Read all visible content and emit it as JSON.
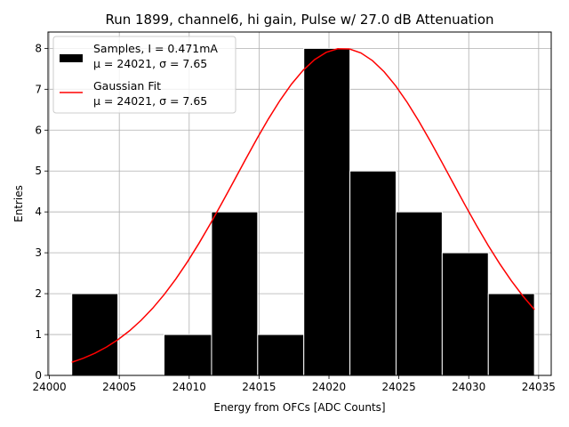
{
  "chart_data": {
    "type": "bar",
    "title": "Run 1899, channel6, hi gain, Pulse w/ 27.0 dB Attenuation",
    "xlabel": "Energy from OFCs [ADC Counts]",
    "ylabel": "Entries",
    "xlim": [
      23999.9,
      24035.9
    ],
    "ylim": [
      0,
      8.4
    ],
    "xticks": [
      "24000",
      "24005",
      "24010",
      "24015",
      "24020",
      "24025",
      "24030",
      "24035"
    ],
    "yticks": [
      "0",
      "1",
      "2",
      "3",
      "4",
      "5",
      "6",
      "7",
      "8"
    ],
    "grid": true,
    "legend_placement": "top-left",
    "histogram": {
      "bin_edges": [
        24001.6,
        24004.9,
        24008.2,
        24011.6,
        24014.9,
        24018.2,
        24021.5,
        24024.8,
        24028.1,
        24031.4,
        24034.7
      ],
      "counts": [
        2,
        0,
        1,
        4,
        1,
        8,
        5,
        4,
        3,
        2
      ],
      "color": "#000000",
      "edge_color": "#ffffff"
    },
    "fit": {
      "mu": 24021,
      "sigma": 7.65,
      "amplitude": 8.0,
      "x_range": [
        24001.6,
        24034.7
      ],
      "color": "#ff0000"
    },
    "legend": [
      {
        "label_line1": "Samples, I = 0.471mA",
        "label_line2": "μ = 24021, σ = 7.65",
        "marker": "patch",
        "color": "#000000"
      },
      {
        "label_line1": "Gaussian Fit",
        "label_line2": "μ = 24021, σ = 7.65",
        "marker": "line",
        "color": "#ff0000"
      }
    ]
  }
}
